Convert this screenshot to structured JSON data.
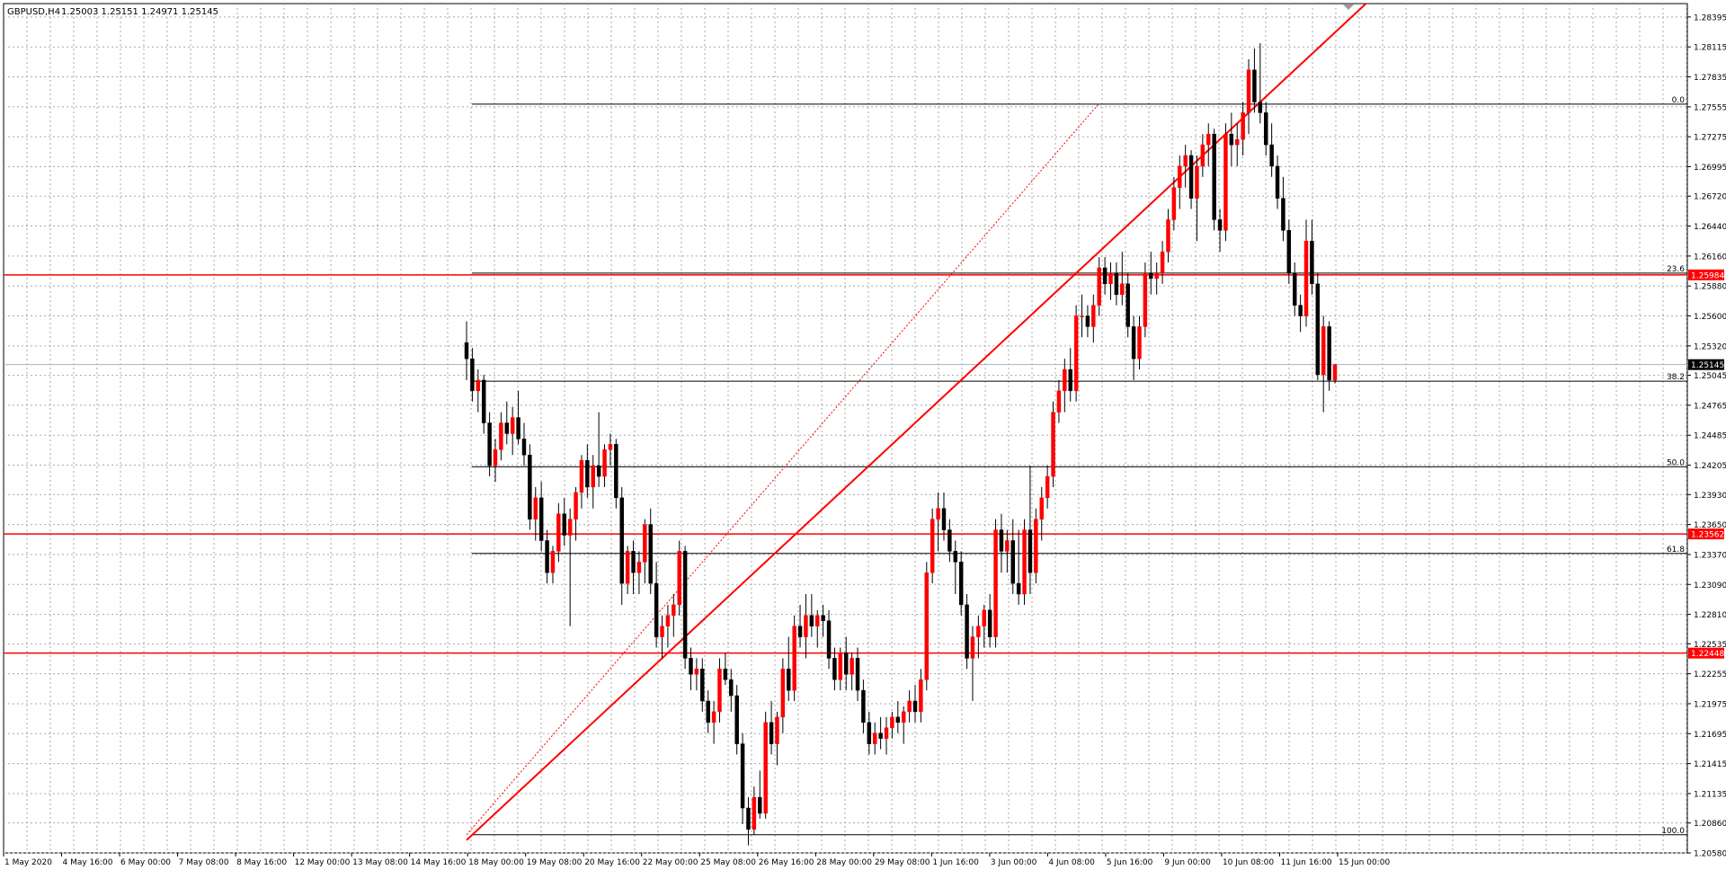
{
  "header": {
    "symbol_timeframe": "GBPUSD,H4",
    "ohlc": "1.25003 1.25151 1.24971 1.25145"
  },
  "colors": {
    "bull_body": "#ff0000",
    "bear_body": "#000000",
    "grid": "#a9a9a9",
    "level_line": "#ff0000",
    "fib_line": "#000000",
    "current_price_line": "#a0b4c8",
    "current_price_badge": "#000000",
    "level_badge": "#ff0000"
  },
  "chart_data": {
    "type": "candlestick",
    "symbol": "GBPUSD",
    "timeframe": "H4",
    "y_axis_ticks": [
      "1.28395",
      "1.28115",
      "1.27835",
      "1.27555",
      "1.27275",
      "1.26995",
      "1.26720",
      "1.26440",
      "1.26160",
      "1.25880",
      "1.25600",
      "1.25320",
      "1.25045",
      "1.24765",
      "1.24485",
      "1.24205",
      "1.23930",
      "1.23650",
      "1.23370",
      "1.23090",
      "1.22810",
      "1.22535",
      "1.22255",
      "1.21975",
      "1.21695",
      "1.21415",
      "1.21135",
      "1.20860",
      "1.20580"
    ],
    "ylim": [
      1.2058,
      1.2852
    ],
    "x_axis_labels": [
      "1 May 2020",
      "4 May 16:00",
      "6 May 00:00",
      "7 May 08:00",
      "8 May 16:00",
      "12 May 00:00",
      "13 May 08:00",
      "14 May 16:00",
      "18 May 00:00",
      "19 May 08:00",
      "20 May 16:00",
      "22 May 00:00",
      "25 May 08:00",
      "26 May 16:00",
      "28 May 00:00",
      "29 May 08:00",
      "1 Jun 16:00",
      "3 Jun 00:00",
      "4 Jun 08:00",
      "5 Jun 16:00",
      "9 Jun 00:00",
      "10 Jun 08:00",
      "11 Jun 16:00",
      "15 Jun 00:00"
    ],
    "current_price": "1.25145",
    "horizontal_levels": [
      {
        "label": "1.25984",
        "value": 1.25984
      },
      {
        "label": "1.23562",
        "value": 1.23562
      },
      {
        "label": "1.22448",
        "value": 1.22448
      }
    ],
    "fibonacci": [
      {
        "label": "0.0",
        "value": 1.2758
      },
      {
        "label": "23.6",
        "value": 1.26
      },
      {
        "label": "38.2",
        "value": 1.2499
      },
      {
        "label": "50.0",
        "value": 1.2419
      },
      {
        "label": "61.8",
        "value": 1.2338
      },
      {
        "label": "100.0",
        "value": 1.2075
      }
    ],
    "trendline": {
      "start_bar": 0,
      "start_price": 1.207,
      "end_bar": 113,
      "end_price": 1.2635
    },
    "candles": [
      [
        1.2535,
        1.2555,
        1.25,
        1.252
      ],
      [
        1.252,
        1.253,
        1.248,
        1.249
      ],
      [
        1.249,
        1.251,
        1.247,
        1.25
      ],
      [
        1.25,
        1.2505,
        1.245,
        1.246
      ],
      [
        1.246,
        1.247,
        1.241,
        1.242
      ],
      [
        1.242,
        1.2445,
        1.2405,
        1.2435
      ],
      [
        1.2435,
        1.247,
        1.2425,
        1.246
      ],
      [
        1.246,
        1.248,
        1.244,
        1.245
      ],
      [
        1.245,
        1.2475,
        1.243,
        1.2465
      ],
      [
        1.2465,
        1.249,
        1.244,
        1.2445
      ],
      [
        1.2445,
        1.246,
        1.242,
        1.243
      ],
      [
        1.243,
        1.244,
        1.236,
        1.237
      ],
      [
        1.237,
        1.24,
        1.235,
        1.239
      ],
      [
        1.239,
        1.2405,
        1.234,
        1.235
      ],
      [
        1.235,
        1.236,
        1.231,
        1.232
      ],
      [
        1.232,
        1.2345,
        1.231,
        1.234
      ],
      [
        1.234,
        1.2385,
        1.233,
        1.2375
      ],
      [
        1.2375,
        1.239,
        1.2345,
        1.2355
      ],
      [
        1.2355,
        1.238,
        1.227,
        1.237
      ],
      [
        1.237,
        1.24,
        1.235,
        1.2395
      ],
      [
        1.2395,
        1.243,
        1.238,
        1.2425
      ],
      [
        1.2425,
        1.244,
        1.239,
        1.24
      ],
      [
        1.24,
        1.243,
        1.238,
        1.242
      ],
      [
        1.242,
        1.247,
        1.24,
        1.241
      ],
      [
        1.241,
        1.244,
        1.24,
        1.2435
      ],
      [
        1.2435,
        1.245,
        1.242,
        1.244
      ],
      [
        1.244,
        1.2445,
        1.238,
        1.239
      ],
      [
        1.239,
        1.24,
        1.229,
        1.231
      ],
      [
        1.231,
        1.2345,
        1.23,
        1.234
      ],
      [
        1.234,
        1.235,
        1.23,
        1.232
      ],
      [
        1.232,
        1.234,
        1.23,
        1.233
      ],
      [
        1.233,
        1.237,
        1.231,
        1.2365
      ],
      [
        1.2365,
        1.238,
        1.23,
        1.231
      ],
      [
        1.231,
        1.233,
        1.225,
        1.226
      ],
      [
        1.226,
        1.228,
        1.224,
        1.227
      ],
      [
        1.227,
        1.229,
        1.225,
        1.228
      ],
      [
        1.228,
        1.23,
        1.226,
        1.229
      ],
      [
        1.229,
        1.235,
        1.228,
        1.234
      ],
      [
        1.234,
        1.2345,
        1.223,
        1.224
      ],
      [
        1.224,
        1.225,
        1.221,
        1.2225
      ],
      [
        1.2225,
        1.224,
        1.221,
        1.223
      ],
      [
        1.223,
        1.224,
        1.219,
        1.22
      ],
      [
        1.22,
        1.221,
        1.217,
        1.218
      ],
      [
        1.218,
        1.22,
        1.216,
        1.219
      ],
      [
        1.219,
        1.224,
        1.218,
        1.223
      ],
      [
        1.223,
        1.2245,
        1.2215,
        1.222
      ],
      [
        1.222,
        1.223,
        1.219,
        1.2205
      ],
      [
        1.2205,
        1.2215,
        1.215,
        1.216
      ],
      [
        1.216,
        1.217,
        1.2085,
        1.21
      ],
      [
        1.21,
        1.211,
        1.2065,
        1.208
      ],
      [
        1.208,
        1.212,
        1.2075,
        1.211
      ],
      [
        1.211,
        1.2135,
        1.209,
        1.2095
      ],
      [
        1.2095,
        1.219,
        1.209,
        1.218
      ],
      [
        1.218,
        1.22,
        1.215,
        1.216
      ],
      [
        1.216,
        1.219,
        1.214,
        1.2185
      ],
      [
        1.2185,
        1.224,
        1.217,
        1.223
      ],
      [
        1.223,
        1.226,
        1.22,
        1.221
      ],
      [
        1.221,
        1.228,
        1.22,
        1.227
      ],
      [
        1.227,
        1.229,
        1.225,
        1.226
      ],
      [
        1.226,
        1.23,
        1.224,
        1.228
      ],
      [
        1.228,
        1.23,
        1.226,
        1.227
      ],
      [
        1.227,
        1.2285,
        1.225,
        1.228
      ],
      [
        1.228,
        1.229,
        1.226,
        1.2275
      ],
      [
        1.2275,
        1.2285,
        1.223,
        1.224
      ],
      [
        1.224,
        1.225,
        1.221,
        1.222
      ],
      [
        1.222,
        1.225,
        1.221,
        1.2245
      ],
      [
        1.2245,
        1.226,
        1.221,
        1.2225
      ],
      [
        1.2225,
        1.2245,
        1.221,
        1.224
      ],
      [
        1.224,
        1.225,
        1.22,
        1.221
      ],
      [
        1.221,
        1.222,
        1.217,
        1.218
      ],
      [
        1.218,
        1.219,
        1.215,
        1.216
      ],
      [
        1.216,
        1.218,
        1.215,
        1.217
      ],
      [
        1.217,
        1.2185,
        1.2155,
        1.2165
      ],
      [
        1.2165,
        1.2185,
        1.215,
        1.2175
      ],
      [
        1.2175,
        1.219,
        1.2165,
        1.2185
      ],
      [
        1.2185,
        1.22,
        1.217,
        1.218
      ],
      [
        1.218,
        1.2195,
        1.216,
        1.219
      ],
      [
        1.219,
        1.221,
        1.218,
        1.22
      ],
      [
        1.22,
        1.2215,
        1.218,
        1.219
      ],
      [
        1.219,
        1.223,
        1.218,
        1.222
      ],
      [
        1.222,
        1.233,
        1.221,
        1.232
      ],
      [
        1.232,
        1.238,
        1.231,
        1.237
      ],
      [
        1.237,
        1.2395,
        1.234,
        1.238
      ],
      [
        1.238,
        1.2395,
        1.235,
        1.236
      ],
      [
        1.236,
        1.237,
        1.233,
        1.234
      ],
      [
        1.234,
        1.235,
        1.23,
        1.233
      ],
      [
        1.233,
        1.234,
        1.228,
        1.229
      ],
      [
        1.229,
        1.23,
        1.223,
        1.224
      ],
      [
        1.224,
        1.227,
        1.22,
        1.226
      ],
      [
        1.226,
        1.228,
        1.224,
        1.227
      ],
      [
        1.227,
        1.229,
        1.225,
        1.2285
      ],
      [
        1.2285,
        1.23,
        1.225,
        1.226
      ],
      [
        1.226,
        1.237,
        1.225,
        1.236
      ],
      [
        1.236,
        1.2375,
        1.232,
        1.234
      ],
      [
        1.234,
        1.236,
        1.232,
        1.235
      ],
      [
        1.235,
        1.237,
        1.23,
        1.231
      ],
      [
        1.231,
        1.236,
        1.229,
        1.23
      ],
      [
        1.23,
        1.237,
        1.229,
        1.236
      ],
      [
        1.236,
        1.242,
        1.23,
        1.232
      ],
      [
        1.232,
        1.238,
        1.231,
        1.237
      ],
      [
        1.237,
        1.24,
        1.235,
        1.239
      ],
      [
        1.239,
        1.242,
        1.238,
        1.241
      ],
      [
        1.241,
        1.248,
        1.24,
        1.247
      ],
      [
        1.247,
        1.25,
        1.246,
        1.249
      ],
      [
        1.249,
        1.252,
        1.247,
        1.251
      ],
      [
        1.251,
        1.253,
        1.248,
        1.249
      ],
      [
        1.249,
        1.257,
        1.248,
        1.256
      ],
      [
        1.256,
        1.258,
        1.254,
        1.256
      ],
      [
        1.256,
        1.257,
        1.254,
        1.255
      ],
      [
        1.255,
        1.258,
        1.2535,
        1.257
      ],
      [
        1.257,
        1.2615,
        1.256,
        1.2605
      ],
      [
        1.2605,
        1.2615,
        1.258,
        1.259
      ],
      [
        1.259,
        1.261,
        1.2575,
        1.26
      ],
      [
        1.26,
        1.261,
        1.257,
        1.258
      ],
      [
        1.258,
        1.262,
        1.257,
        1.259
      ],
      [
        1.259,
        1.26,
        1.254,
        1.255
      ],
      [
        1.255,
        1.256,
        1.25,
        1.252
      ],
      [
        1.252,
        1.256,
        1.251,
        1.255
      ],
      [
        1.255,
        1.261,
        1.254,
        1.26
      ],
      [
        1.26,
        1.262,
        1.258,
        1.2595
      ],
      [
        1.2595,
        1.261,
        1.258,
        1.26
      ],
      [
        1.26,
        1.263,
        1.259,
        1.262
      ],
      [
        1.262,
        1.266,
        1.261,
        1.265
      ],
      [
        1.265,
        1.269,
        1.264,
        1.268
      ],
      [
        1.268,
        1.271,
        1.266,
        1.27
      ],
      [
        1.27,
        1.272,
        1.268,
        1.271
      ],
      [
        1.271,
        1.2715,
        1.266,
        1.267
      ],
      [
        1.267,
        1.271,
        1.263,
        1.27
      ],
      [
        1.27,
        1.273,
        1.269,
        1.272
      ],
      [
        1.272,
        1.274,
        1.27,
        1.273
      ],
      [
        1.273,
        1.2735,
        1.264,
        1.265
      ],
      [
        1.265,
        1.266,
        1.262,
        1.264
      ],
      [
        1.264,
        1.274,
        1.263,
        1.273
      ],
      [
        1.273,
        1.275,
        1.27,
        1.272
      ],
      [
        1.272,
        1.274,
        1.27,
        1.2725
      ],
      [
        1.2725,
        1.276,
        1.271,
        1.275
      ],
      [
        1.275,
        1.28,
        1.273,
        1.279
      ],
      [
        1.279,
        1.281,
        1.275,
        1.276
      ],
      [
        1.276,
        1.2815,
        1.274,
        1.275
      ],
      [
        1.275,
        1.276,
        1.271,
        1.272
      ],
      [
        1.272,
        1.274,
        1.269,
        1.27
      ],
      [
        1.27,
        1.271,
        1.266,
        1.267
      ],
      [
        1.267,
        1.269,
        1.263,
        1.264
      ],
      [
        1.264,
        1.265,
        1.259,
        1.26
      ],
      [
        1.26,
        1.261,
        1.256,
        1.257
      ],
      [
        1.257,
        1.258,
        1.2545,
        1.256
      ],
      [
        1.256,
        1.265,
        1.255,
        1.263
      ],
      [
        1.263,
        1.265,
        1.258,
        1.259
      ],
      [
        1.259,
        1.26,
        1.25,
        1.2505
      ],
      [
        1.2505,
        1.256,
        1.247,
        1.255
      ],
      [
        1.255,
        1.2555,
        1.249,
        1.25
      ],
      [
        1.25,
        1.2515,
        1.2497,
        1.25145
      ]
    ]
  }
}
